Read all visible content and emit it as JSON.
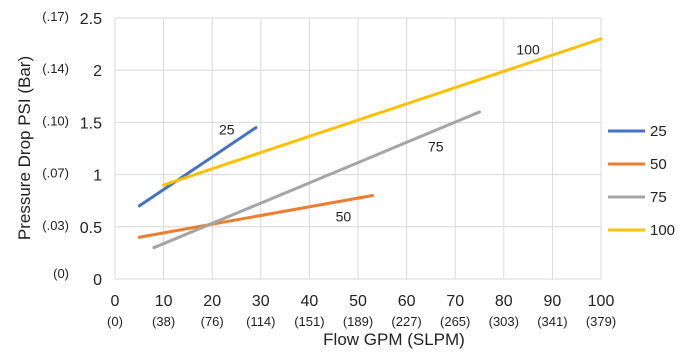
{
  "chart_data": {
    "type": "line",
    "xlabel": "Flow GPM (SLPM)",
    "ylabel": "Pressure Drop PSI (Bar)",
    "xlim": [
      0,
      100
    ],
    "ylim": [
      0,
      2.5
    ],
    "grid": true,
    "legend_position": "right",
    "x_ticks": [
      {
        "value": 0,
        "label": "0",
        "sub": "(0)"
      },
      {
        "value": 10,
        "label": "10",
        "sub": "(38)"
      },
      {
        "value": 20,
        "label": "20",
        "sub": "(76)"
      },
      {
        "value": 30,
        "label": "30",
        "sub": "(114)"
      },
      {
        "value": 40,
        "label": "40",
        "sub": "(151)"
      },
      {
        "value": 50,
        "label": "50",
        "sub": "(189)"
      },
      {
        "value": 60,
        "label": "60",
        "sub": "(227)"
      },
      {
        "value": 70,
        "label": "70",
        "sub": "(265)"
      },
      {
        "value": 80,
        "label": "80",
        "sub": "(303)"
      },
      {
        "value": 90,
        "label": "90",
        "sub": "(341)"
      },
      {
        "value": 100,
        "label": "100",
        "sub": "(379)"
      }
    ],
    "y_ticks": [
      {
        "value": 0,
        "label": "0",
        "sub": "(0)"
      },
      {
        "value": 0.5,
        "label": "0.5",
        "sub": "(.03)"
      },
      {
        "value": 1,
        "label": "1",
        "sub": "(.07)"
      },
      {
        "value": 1.5,
        "label": "1.5",
        "sub": "(.10)"
      },
      {
        "value": 2,
        "label": "2",
        "sub": "(.14)"
      },
      {
        "value": 2.5,
        "label": "2.5",
        "sub": "(.17)"
      }
    ],
    "series": [
      {
        "name": "25",
        "color": "#4472c4",
        "points": [
          [
            5,
            0.7
          ],
          [
            29,
            1.45
          ]
        ],
        "label": "25",
        "label_at": [
          23,
          1.43
        ]
      },
      {
        "name": "50",
        "color": "#ed7d31",
        "points": [
          [
            5,
            0.4
          ],
          [
            53,
            0.8
          ]
        ],
        "label": "50",
        "label_at": [
          47,
          0.6
        ]
      },
      {
        "name": "75",
        "color": "#a5a5a5",
        "points": [
          [
            8,
            0.3
          ],
          [
            75,
            1.6
          ]
        ],
        "label": "75",
        "label_at": [
          66,
          1.27
        ]
      },
      {
        "name": "100",
        "color": "#ffc000",
        "points": [
          [
            10,
            0.9
          ],
          [
            100,
            2.3
          ]
        ],
        "label": "100",
        "label_at": [
          85,
          2.2
        ]
      }
    ]
  }
}
